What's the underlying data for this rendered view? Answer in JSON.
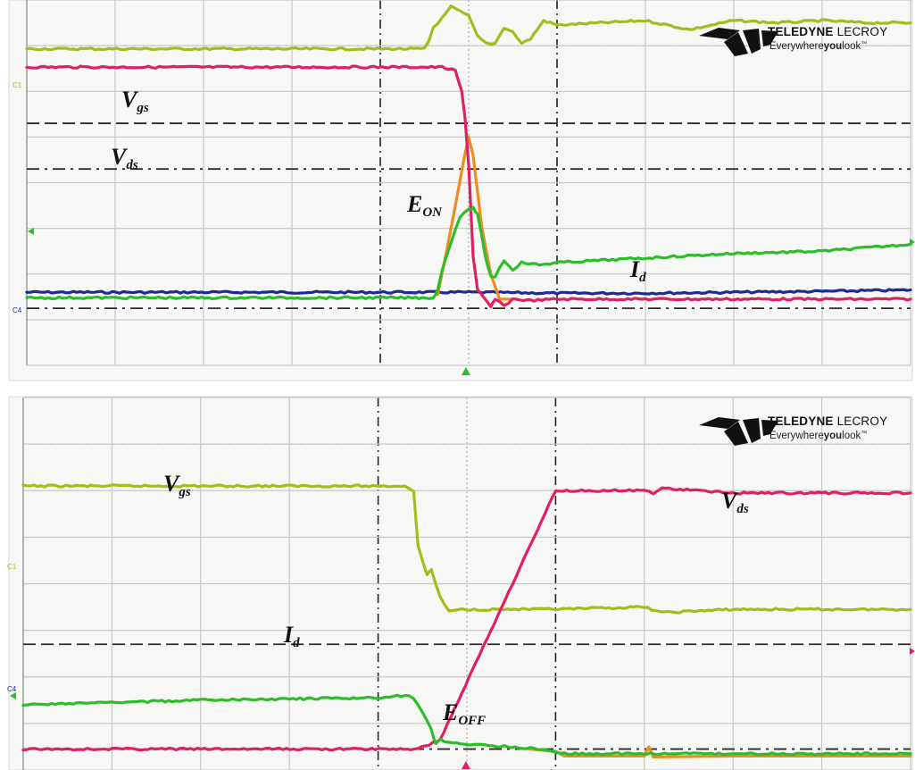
{
  "brand": {
    "name_bold": "TELEDYNE",
    "name_light": "LECROY",
    "tagline_a": "Everywhere",
    "tagline_b": "you",
    "tagline_c": "look",
    "tagline_mark": "™"
  },
  "colors": {
    "vgs": "#a8ba1e",
    "vds": "#e0205f",
    "id": "#2ebd2a",
    "energy": "#f08c1e",
    "channel4": "#1e2a9a",
    "grid": "#c7c7c7",
    "axis": "#2b2b2b",
    "background": "#f7f7f5"
  },
  "chart_data": [
    {
      "type": "line",
      "title": "",
      "xlabel": "",
      "ylabel": "",
      "grid": true,
      "grid_divisions": [
        10,
        8
      ],
      "xlim": [
        -5,
        5
      ],
      "ylim": [
        -4,
        4
      ],
      "x_units": "div",
      "y_units": "div",
      "channel_markers": [
        "C1",
        "C4"
      ],
      "annotations": {
        "vgs": {
          "main": "V",
          "sub": "gs"
        },
        "vds": {
          "main": "V",
          "sub": "ds"
        },
        "energy": {
          "main": "E",
          "sub": "ON"
        },
        "current": {
          "main": "I",
          "sub": "d"
        }
      },
      "series": [
        {
          "key": "vgs",
          "x": [
            -5,
            -0.5,
            -0.45,
            -0.4,
            -0.3,
            -0.2,
            -0.1,
            0,
            0.1,
            0.2,
            0.3,
            0.4,
            0.5,
            0.6,
            0.7,
            0.85,
            1,
            1.5,
            2,
            2.5,
            3,
            3.5,
            4,
            4.5,
            5
          ],
          "y": [
            2.93,
            2.93,
            3.1,
            3.4,
            3.6,
            3.85,
            3.75,
            3.65,
            3.2,
            3.05,
            3.05,
            3.4,
            3.3,
            3.05,
            3.15,
            3.55,
            3.45,
            3.5,
            3.55,
            3.35,
            3.55,
            3.5,
            3.55,
            3.5,
            3.5
          ]
        },
        {
          "key": "vds",
          "x": [
            -5,
            -0.3,
            -0.15,
            -0.08,
            -0.04,
            0,
            0.05,
            0.1,
            0.2,
            0.25,
            0.3,
            0.4,
            0.5,
            0.7,
            1,
            2,
            3,
            4,
            5
          ],
          "y": [
            2.53,
            2.53,
            2.45,
            2.0,
            1.4,
            0.4,
            -1.6,
            -2.35,
            -2.6,
            -2.72,
            -2.55,
            -2.7,
            -2.55,
            -2.58,
            -2.55,
            -2.55,
            -2.55,
            -2.55,
            -2.55
          ]
        },
        {
          "key": "id",
          "x": [
            -5,
            -0.4,
            -0.35,
            -0.3,
            -0.2,
            -0.1,
            0,
            0.05,
            0.1,
            0.15,
            0.2,
            0.25,
            0.3,
            0.4,
            0.5,
            0.6,
            0.8,
            1,
            1.5,
            2,
            3,
            4,
            5
          ],
          "y": [
            -2.52,
            -2.52,
            -2.35,
            -1.9,
            -1.3,
            -0.75,
            -0.6,
            -0.55,
            -0.7,
            -1.2,
            -1.7,
            -2.05,
            -2.05,
            -1.7,
            -1.9,
            -1.75,
            -1.8,
            -1.75,
            -1.7,
            -1.65,
            -1.55,
            -1.5,
            -1.35
          ]
        },
        {
          "key": "energy",
          "x": [
            -0.35,
            -0.25,
            -0.15,
            -0.05,
            0,
            0.05,
            0.1,
            0.15,
            0.25,
            0.35,
            0.5
          ],
          "y": [
            -2.45,
            -1.5,
            -0.5,
            0.55,
            1.0,
            0.6,
            -0.2,
            -1.0,
            -2.0,
            -2.55,
            -2.55
          ]
        },
        {
          "key": "channel4",
          "x": [
            -5,
            -1,
            0,
            1,
            2,
            3,
            4,
            5
          ],
          "y": [
            -2.4,
            -2.4,
            -2.4,
            -2.42,
            -2.42,
            -2.4,
            -2.38,
            -2.35
          ]
        }
      ]
    },
    {
      "type": "line",
      "title": "",
      "xlabel": "",
      "ylabel": "",
      "grid": true,
      "grid_divisions": [
        10,
        8
      ],
      "xlim": [
        -5,
        5
      ],
      "ylim": [
        -4,
        4
      ],
      "x_units": "div",
      "y_units": "div",
      "channel_markers": [
        "C1",
        "C4"
      ],
      "annotations": {
        "vgs": {
          "main": "V",
          "sub": "gs"
        },
        "vds": {
          "main": "V",
          "sub": "ds"
        },
        "energy": {
          "main": "E",
          "sub": "OFF"
        },
        "current": {
          "main": "I",
          "sub": "d"
        }
      },
      "series": [
        {
          "key": "vgs",
          "x": [
            -5,
            -0.7,
            -0.6,
            -0.55,
            -0.45,
            -0.4,
            -0.3,
            -0.2,
            -0.1,
            0,
            0.5,
            1,
            2,
            2.2,
            3,
            4,
            5
          ],
          "y": [
            2.1,
            2.1,
            2.0,
            0.8,
            0.2,
            0.3,
            -0.3,
            -0.6,
            -0.55,
            -0.55,
            -0.55,
            -0.55,
            -0.5,
            -0.62,
            -0.55,
            -0.55,
            -0.55
          ]
        },
        {
          "key": "vds",
          "x": [
            -5,
            -0.55,
            -0.3,
            1,
            1.5,
            2,
            2.1,
            2.2,
            3,
            4,
            5
          ],
          "y": [
            -3.55,
            -3.55,
            -3.35,
            2.0,
            2.0,
            2.0,
            1.95,
            2.05,
            1.95,
            1.95,
            1.95
          ]
        },
        {
          "key": "id",
          "x": [
            -5,
            -3,
            -1,
            -0.7,
            -0.6,
            -0.5,
            -0.4,
            -0.35,
            -0.3,
            -0.2,
            0,
            0.5,
            0.8,
            1.0,
            1.1,
            3,
            5
          ],
          "y": [
            -2.6,
            -2.5,
            -2.45,
            -2.4,
            -2.45,
            -2.75,
            -3.15,
            -3.45,
            -3.35,
            -3.4,
            -3.45,
            -3.5,
            -3.55,
            -3.6,
            -3.65,
            -3.65,
            -3.65
          ]
        },
        {
          "key": "energy",
          "x": [
            0.7,
            1.0,
            1.1,
            2.0,
            2.05,
            2.1,
            3,
            5
          ],
          "y": [
            -3.55,
            -3.6,
            -3.7,
            -3.7,
            -3.5,
            -3.72,
            -3.7,
            -3.7
          ]
        }
      ]
    }
  ]
}
